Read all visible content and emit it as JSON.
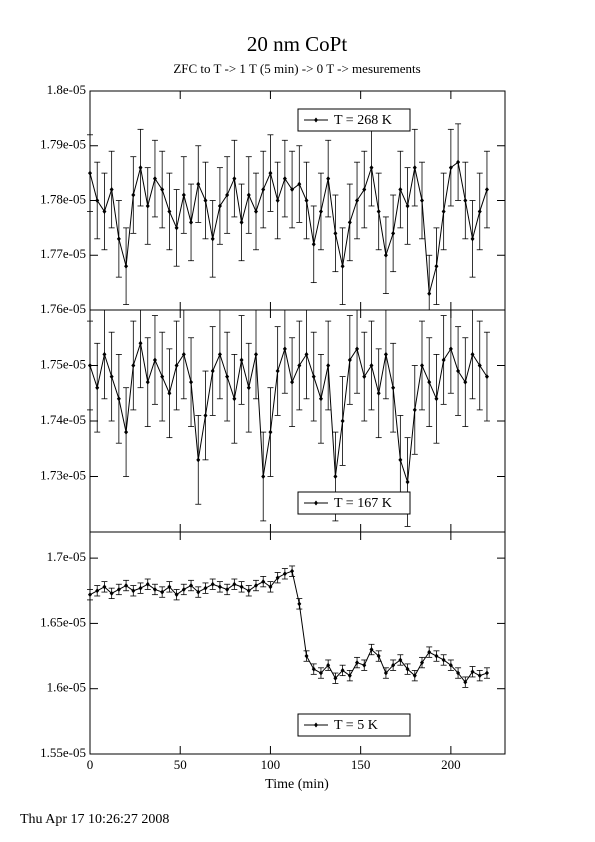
{
  "chart_data": [
    {
      "type": "line",
      "title": "20 nm CoPt",
      "subtitle": "ZFC to T -> 1 T (5 min) -> 0 T -> mesurements",
      "xlim": [
        0,
        230
      ],
      "ylim": [
        1.76e-05,
        1.8e-05
      ],
      "yticks": [
        {
          "value": 1.76e-05,
          "label": "1.76e-05"
        },
        {
          "value": 1.77e-05,
          "label": "1.77e-05"
        },
        {
          "value": 1.78e-05,
          "label": "1.78e-05"
        },
        {
          "value": 1.79e-05,
          "label": "1.79e-05"
        },
        {
          "value": 1.8e-05,
          "label": "1.8e-05"
        }
      ],
      "legend": "upper right",
      "x": [
        0,
        4,
        8,
        12,
        16,
        20,
        24,
        28,
        32,
        36,
        40,
        44,
        48,
        52,
        56,
        60,
        64,
        68,
        72,
        76,
        80,
        84,
        88,
        92,
        96,
        100,
        104,
        108,
        112,
        116,
        120,
        124,
        128,
        132,
        136,
        140,
        144,
        148,
        152,
        156,
        160,
        164,
        168,
        172,
        176,
        180,
        184,
        188,
        192,
        196,
        200,
        204,
        208,
        212,
        216,
        220
      ],
      "series": [
        {
          "name": "T = 268 K",
          "color": "#000000",
          "error": 7e-08,
          "values": [
            1.785e-05,
            1.78e-05,
            1.778e-05,
            1.782e-05,
            1.773e-05,
            1.768e-05,
            1.781e-05,
            1.786e-05,
            1.779e-05,
            1.784e-05,
            1.782e-05,
            1.778e-05,
            1.775e-05,
            1.781e-05,
            1.776e-05,
            1.783e-05,
            1.78e-05,
            1.773e-05,
            1.779e-05,
            1.781e-05,
            1.784e-05,
            1.776e-05,
            1.781e-05,
            1.778e-05,
            1.782e-05,
            1.785e-05,
            1.78e-05,
            1.784e-05,
            1.782e-05,
            1.783e-05,
            1.78e-05,
            1.772e-05,
            1.778e-05,
            1.784e-05,
            1.774e-05,
            1.768e-05,
            1.776e-05,
            1.78e-05,
            1.782e-05,
            1.786e-05,
            1.778e-05,
            1.77e-05,
            1.774e-05,
            1.782e-05,
            1.779e-05,
            1.786e-05,
            1.78e-05,
            1.763e-05,
            1.768e-05,
            1.778e-05,
            1.786e-05,
            1.787e-05,
            1.78e-05,
            1.773e-05,
            1.778e-05,
            1.782e-05
          ]
        }
      ]
    },
    {
      "type": "line",
      "xlim": [
        0,
        230
      ],
      "ylim": [
        1.72e-05,
        1.76e-05
      ],
      "yticks": [
        {
          "value": 1.73e-05,
          "label": "1.73e-05"
        },
        {
          "value": 1.74e-05,
          "label": "1.74e-05"
        },
        {
          "value": 1.75e-05,
          "label": "1.75e-05"
        }
      ],
      "legend": "lower right",
      "x": [
        0,
        4,
        8,
        12,
        16,
        20,
        24,
        28,
        32,
        36,
        40,
        44,
        48,
        52,
        56,
        60,
        64,
        68,
        72,
        76,
        80,
        84,
        88,
        92,
        96,
        100,
        104,
        108,
        112,
        116,
        120,
        124,
        128,
        132,
        136,
        140,
        144,
        148,
        152,
        156,
        160,
        164,
        168,
        172,
        176,
        180,
        184,
        188,
        192,
        196,
        200,
        204,
        208,
        212,
        216,
        220
      ],
      "series": [
        {
          "name": "T = 167 K",
          "color": "#000000",
          "error": 8e-08,
          "values": [
            1.75e-05,
            1.746e-05,
            1.752e-05,
            1.748e-05,
            1.744e-05,
            1.738e-05,
            1.75e-05,
            1.754e-05,
            1.747e-05,
            1.751e-05,
            1.748e-05,
            1.745e-05,
            1.75e-05,
            1.752e-05,
            1.747e-05,
            1.733e-05,
            1.741e-05,
            1.749e-05,
            1.752e-05,
            1.748e-05,
            1.744e-05,
            1.751e-05,
            1.746e-05,
            1.752e-05,
            1.73e-05,
            1.738e-05,
            1.749e-05,
            1.753e-05,
            1.747e-05,
            1.75e-05,
            1.752e-05,
            1.748e-05,
            1.744e-05,
            1.75e-05,
            1.73e-05,
            1.74e-05,
            1.751e-05,
            1.753e-05,
            1.748e-05,
            1.75e-05,
            1.745e-05,
            1.752e-05,
            1.746e-05,
            1.733e-05,
            1.729e-05,
            1.742e-05,
            1.75e-05,
            1.747e-05,
            1.744e-05,
            1.751e-05,
            1.753e-05,
            1.749e-05,
            1.747e-05,
            1.752e-05,
            1.75e-05,
            1.748e-05
          ]
        }
      ]
    },
    {
      "type": "line",
      "x_label": "Time (min)",
      "xlim": [
        0,
        230
      ],
      "xticks": [
        0,
        50,
        100,
        150,
        200
      ],
      "ylim": [
        1.55e-05,
        1.72e-05
      ],
      "yticks": [
        {
          "value": 1.55e-05,
          "label": "1.55e-05"
        },
        {
          "value": 1.6e-05,
          "label": "1.6e-05"
        },
        {
          "value": 1.65e-05,
          "label": "1.65e-05"
        },
        {
          "value": 1.7e-05,
          "label": "1.7e-05"
        }
      ],
      "legend": "lower right",
      "x": [
        0,
        4,
        8,
        12,
        16,
        20,
        24,
        28,
        32,
        36,
        40,
        44,
        48,
        52,
        56,
        60,
        64,
        68,
        72,
        76,
        80,
        84,
        88,
        92,
        96,
        100,
        104,
        108,
        112,
        116,
        120,
        124,
        128,
        132,
        136,
        140,
        144,
        148,
        152,
        156,
        160,
        164,
        168,
        172,
        176,
        180,
        184,
        188,
        192,
        196,
        200,
        204,
        208,
        212,
        216,
        220
      ],
      "series": [
        {
          "name": "T = 5 K",
          "color": "#000000",
          "error": 4e-08,
          "values": [
            1.672e-05,
            1.675e-05,
            1.678e-05,
            1.673e-05,
            1.676e-05,
            1.679e-05,
            1.675e-05,
            1.677e-05,
            1.68e-05,
            1.676e-05,
            1.674e-05,
            1.678e-05,
            1.672e-05,
            1.676e-05,
            1.679e-05,
            1.674e-05,
            1.677e-05,
            1.68e-05,
            1.678e-05,
            1.676e-05,
            1.68e-05,
            1.678e-05,
            1.675e-05,
            1.679e-05,
            1.682e-05,
            1.678e-05,
            1.685e-05,
            1.688e-05,
            1.69e-05,
            1.665e-05,
            1.625e-05,
            1.615e-05,
            1.612e-05,
            1.618e-05,
            1.608e-05,
            1.614e-05,
            1.61e-05,
            1.62e-05,
            1.618e-05,
            1.63e-05,
            1.625e-05,
            1.612e-05,
            1.618e-05,
            1.622e-05,
            1.615e-05,
            1.61e-05,
            1.62e-05,
            1.628e-05,
            1.625e-05,
            1.622e-05,
            1.618e-05,
            1.612e-05,
            1.605e-05,
            1.613e-05,
            1.61e-05,
            1.612e-05
          ]
        }
      ]
    }
  ],
  "footer": "Thu Apr 17 10:26:27 2008"
}
